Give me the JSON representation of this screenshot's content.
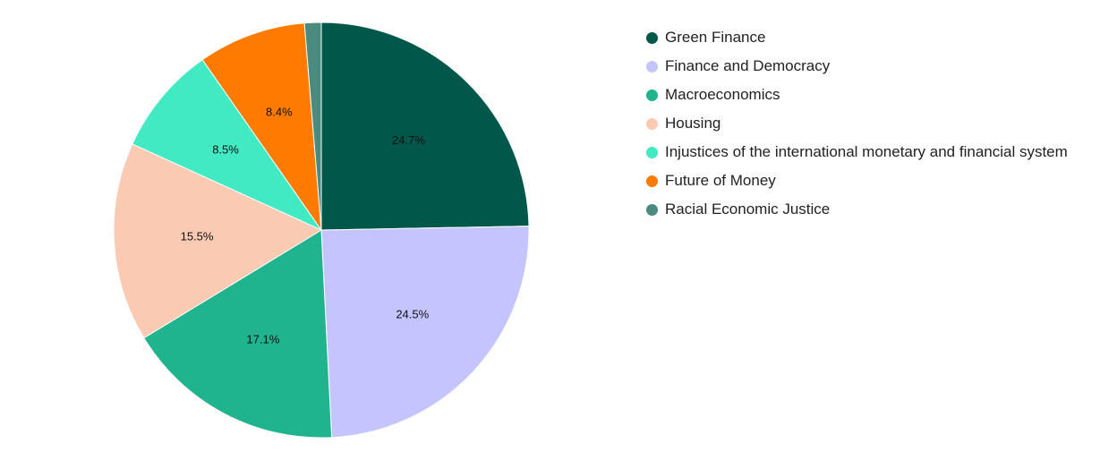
{
  "chart_data": {
    "type": "pie",
    "title": "",
    "legend_position": "right",
    "start_angle_deg": 0,
    "direction": "clockwise",
    "slices": [
      {
        "name": "Green Finance",
        "value": 24.7,
        "label": "24.7%",
        "color": "#02574B"
      },
      {
        "name": "Finance and Democracy",
        "value": 24.5,
        "label": "24.5%",
        "color": "#C4C5FF"
      },
      {
        "name": "Macroeconomics",
        "value": 17.1,
        "label": "17.1%",
        "color": "#1FB48E"
      },
      {
        "name": "Housing",
        "value": 15.5,
        "label": "15.5%",
        "color": "#FACAB2"
      },
      {
        "name": "Injustices of the international monetary and financial system",
        "value": 8.5,
        "label": "8.5%",
        "color": "#41EAC3"
      },
      {
        "name": "Future of Money",
        "value": 8.4,
        "label": "8.4%",
        "color": "#FF7B00"
      },
      {
        "name": "Racial Economic Justice",
        "value": 1.3,
        "label": "",
        "color": "#4B8A7E"
      }
    ]
  }
}
